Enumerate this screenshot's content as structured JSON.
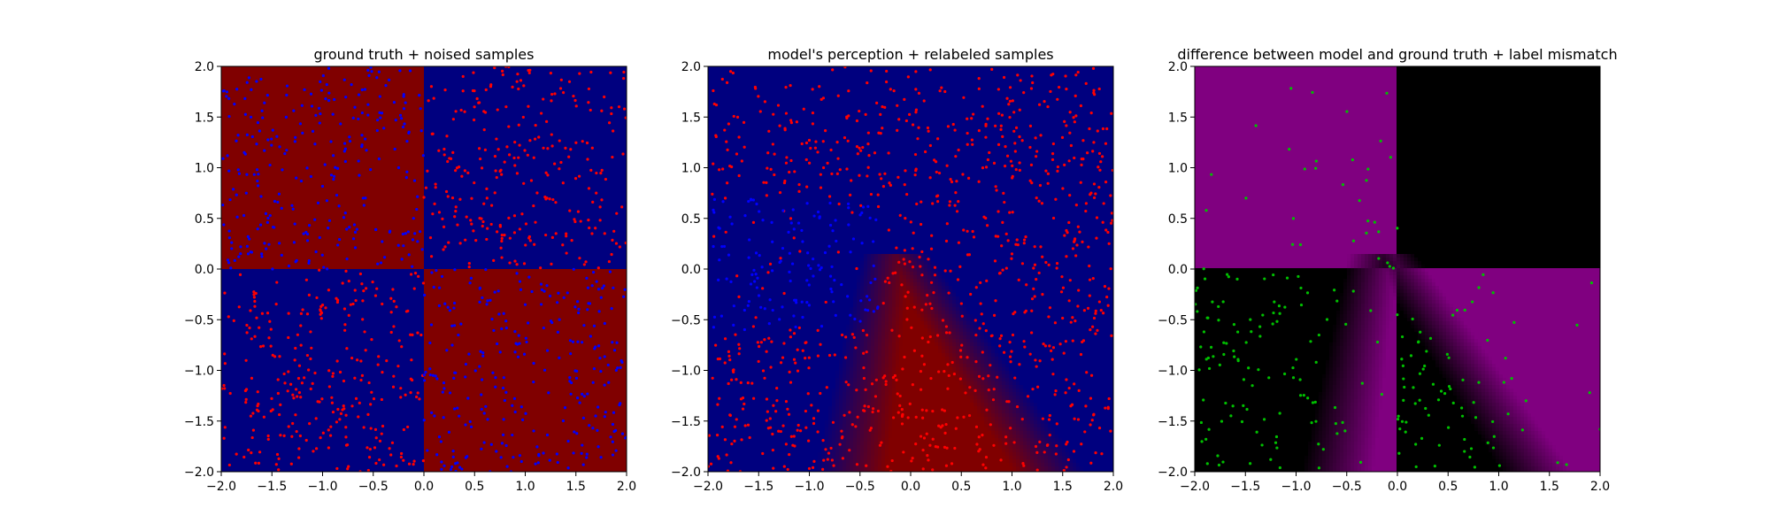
{
  "chart_data": [
    {
      "type": "heatmap",
      "title": "ground truth + noised samples",
      "xlim": [
        -2.0,
        2.0
      ],
      "ylim": [
        -2.0,
        2.0
      ],
      "x_ticks": [
        "−2.0",
        "−1.5",
        "−1.0",
        "−0.5",
        "0.0",
        "0.5",
        "1.0",
        "1.5",
        "2.0"
      ],
      "y_ticks": [
        "−2.0",
        "−1.5",
        "−1.0",
        "−0.5",
        "0.0",
        "0.5",
        "1.0",
        "1.5",
        "2.0"
      ],
      "background": "checkerboard",
      "region_colors": {
        "positive": "#800000",
        "negative": "#00007f"
      },
      "scatter_series": [
        {
          "color": "#ff0000",
          "region": "positive-product"
        },
        {
          "color": "#0000ff",
          "region": "negative-product"
        }
      ],
      "grid": false
    },
    {
      "type": "heatmap",
      "title": "model's perception + relabeled samples",
      "xlim": [
        -2.0,
        2.0
      ],
      "ylim": [
        -2.0,
        2.0
      ],
      "x_ticks": [
        "−2.0",
        "−1.5",
        "−1.0",
        "−0.5",
        "0.0",
        "0.5",
        "1.0",
        "1.5",
        "2.0"
      ],
      "y_ticks": [
        "−2.0",
        "−1.5",
        "−1.0",
        "−0.5",
        "0.0",
        "0.5",
        "1.0",
        "1.5",
        "2.0"
      ],
      "background": "model-wedge",
      "region_colors": {
        "positive": "#800000",
        "negative": "#00007f"
      },
      "scatter_series": [
        {
          "color": "#ff0000",
          "region": "upper and wedge"
        },
        {
          "color": "#0000ff",
          "region": "left middle"
        }
      ],
      "grid": false
    },
    {
      "type": "heatmap",
      "title": "difference between model and ground truth + label mismatch",
      "xlim": [
        -2.0,
        2.0
      ],
      "ylim": [
        -2.0,
        2.0
      ],
      "x_ticks": [
        "−2.0",
        "−1.5",
        "−1.0",
        "−0.5",
        "0.0",
        "0.5",
        "1.0",
        "1.5",
        "2.0"
      ],
      "y_ticks": [
        "−2.0",
        "−1.5",
        "−1.0",
        "−0.5",
        "0.0",
        "0.5",
        "1.0",
        "1.5",
        "2.0"
      ],
      "background": "difference",
      "region_colors": {
        "mismatch": "#800080",
        "match": "#000000"
      },
      "scatter_series": [
        {
          "color": "#00c000",
          "region": "label mismatch"
        }
      ],
      "grid": false
    }
  ]
}
